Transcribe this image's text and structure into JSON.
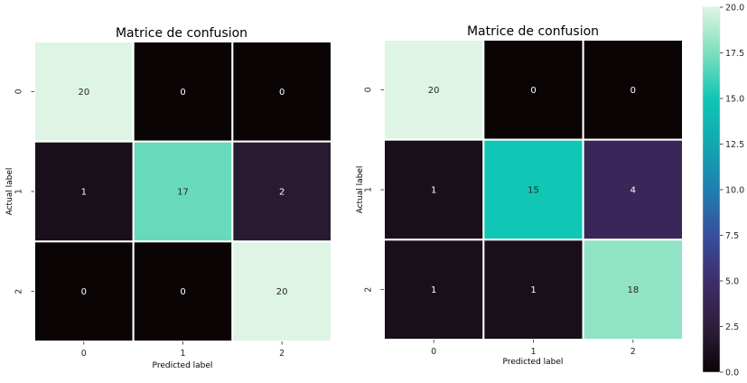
{
  "chart_data": [
    {
      "type": "heatmap",
      "title": "Matrice de confusion",
      "xlabel": "Predicted label",
      "ylabel": "Actual label",
      "x_categories": [
        "0",
        "1",
        "2"
      ],
      "y_categories": [
        "0",
        "1",
        "2"
      ],
      "values": [
        [
          20,
          0,
          0
        ],
        [
          1,
          17,
          2
        ],
        [
          0,
          0,
          20
        ]
      ]
    },
    {
      "type": "heatmap",
      "title": "Matrice de confusion",
      "xlabel": "Predicted label",
      "ylabel": "Actual label",
      "x_categories": [
        "0",
        "1",
        "2"
      ],
      "y_categories": [
        "0",
        "1",
        "2"
      ],
      "values": [
        [
          20,
          0,
          0
        ],
        [
          1,
          15,
          4
        ],
        [
          1,
          1,
          18
        ]
      ]
    }
  ],
  "colorbar": {
    "range": [
      0,
      20
    ],
    "ticks": [
      {
        "value": 0,
        "label": "0.0"
      },
      {
        "value": 2.5,
        "label": "2.5"
      },
      {
        "value": 5,
        "label": "5.0"
      },
      {
        "value": 7.5,
        "label": "7.5"
      },
      {
        "value": 10,
        "label": "10.0"
      },
      {
        "value": 12.5,
        "label": "12.5"
      },
      {
        "value": 15,
        "label": "15.0"
      },
      {
        "value": 17.5,
        "label": "17.5"
      },
      {
        "value": 20,
        "label": "20.0"
      }
    ],
    "colormap": [
      {
        "value": 0,
        "color": "#0b0405"
      },
      {
        "value": 2.5,
        "color": "#2e1f3c"
      },
      {
        "value": 5,
        "color": "#3e2d6b"
      },
      {
        "value": 7.5,
        "color": "#384f9e"
      },
      {
        "value": 10,
        "color": "#1f7fae"
      },
      {
        "value": 12.5,
        "color": "#12a7b0"
      },
      {
        "value": 15,
        "color": "#10c6b4"
      },
      {
        "value": 17.5,
        "color": "#7ddfbd"
      },
      {
        "value": 20,
        "color": "#def5e5"
      }
    ]
  },
  "colors": {
    "cell_separator": "#ffffff",
    "annot_dark": "#262626",
    "annot_light": "#ffffff"
  }
}
